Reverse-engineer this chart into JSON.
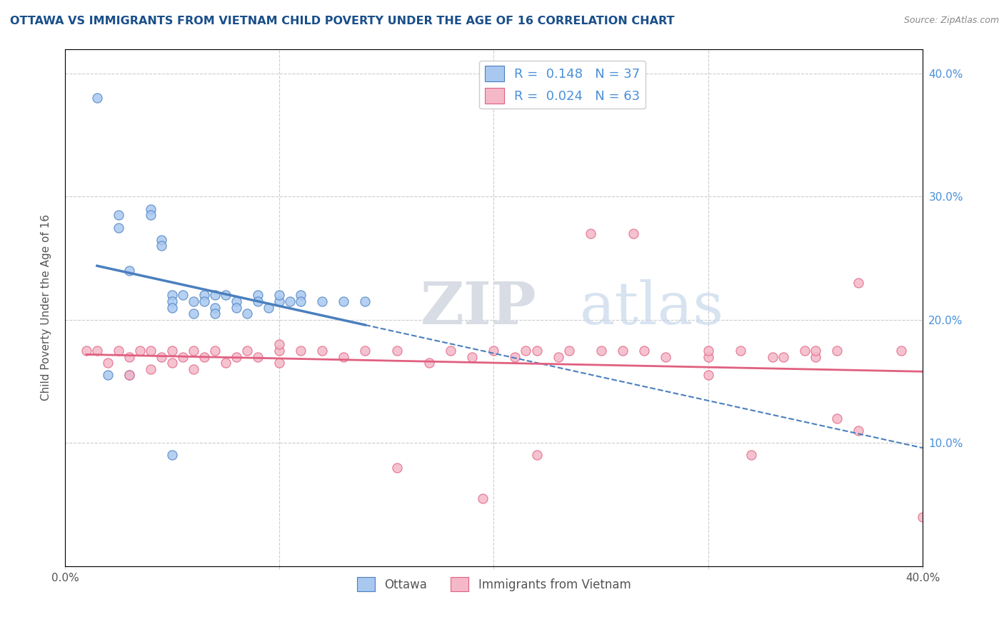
{
  "title": "OTTAWA VS IMMIGRANTS FROM VIETNAM CHILD POVERTY UNDER THE AGE OF 16 CORRELATION CHART",
  "source": "Source: ZipAtlas.com",
  "ylabel": "Child Poverty Under the Age of 16",
  "xlim": [
    0.0,
    0.4
  ],
  "ylim": [
    0.0,
    0.42
  ],
  "ottawa_color": "#a8c8f0",
  "vietnam_color": "#f4b8c8",
  "ottawa_line_color": "#4a7fbe",
  "vietnam_line_color": "#e06080",
  "R_ottawa": 0.148,
  "N_ottawa": 37,
  "R_vietnam": 0.024,
  "N_vietnam": 63,
  "legend_ottawa": "Ottawa",
  "legend_vietnam": "Immigrants from Vietnam",
  "watermark_ZIP": "ZIP",
  "watermark_atlas": "atlas",
  "ottawa_x": [
    0.015,
    0.025,
    0.025,
    0.03,
    0.04,
    0.04,
    0.045,
    0.045,
    0.05,
    0.05,
    0.05,
    0.055,
    0.06,
    0.06,
    0.065,
    0.065,
    0.07,
    0.07,
    0.07,
    0.075,
    0.08,
    0.08,
    0.085,
    0.09,
    0.09,
    0.095,
    0.1,
    0.1,
    0.105,
    0.11,
    0.11,
    0.12,
    0.13,
    0.14,
    0.02,
    0.03,
    0.05
  ],
  "ottawa_y": [
    0.38,
    0.285,
    0.275,
    0.24,
    0.29,
    0.285,
    0.265,
    0.26,
    0.22,
    0.215,
    0.21,
    0.22,
    0.215,
    0.205,
    0.22,
    0.215,
    0.22,
    0.21,
    0.205,
    0.22,
    0.215,
    0.21,
    0.205,
    0.22,
    0.215,
    0.21,
    0.215,
    0.22,
    0.215,
    0.22,
    0.215,
    0.215,
    0.215,
    0.215,
    0.155,
    0.155,
    0.09
  ],
  "vietnam_x": [
    0.01,
    0.015,
    0.02,
    0.025,
    0.03,
    0.03,
    0.035,
    0.04,
    0.04,
    0.045,
    0.05,
    0.05,
    0.055,
    0.06,
    0.06,
    0.065,
    0.07,
    0.075,
    0.08,
    0.085,
    0.09,
    0.1,
    0.1,
    0.11,
    0.12,
    0.13,
    0.14,
    0.155,
    0.17,
    0.18,
    0.19,
    0.2,
    0.21,
    0.215,
    0.22,
    0.23,
    0.235,
    0.25,
    0.27,
    0.28,
    0.3,
    0.3,
    0.315,
    0.33,
    0.335,
    0.345,
    0.35,
    0.36,
    0.37,
    0.39,
    0.22,
    0.245,
    0.265,
    0.32,
    0.35,
    0.36,
    0.37,
    0.26,
    0.3,
    0.1,
    0.155,
    0.195,
    0.4
  ],
  "vietnam_y": [
    0.175,
    0.175,
    0.165,
    0.175,
    0.17,
    0.155,
    0.175,
    0.175,
    0.16,
    0.17,
    0.165,
    0.175,
    0.17,
    0.175,
    0.16,
    0.17,
    0.175,
    0.165,
    0.17,
    0.175,
    0.17,
    0.175,
    0.165,
    0.175,
    0.175,
    0.17,
    0.175,
    0.175,
    0.165,
    0.175,
    0.17,
    0.175,
    0.17,
    0.175,
    0.175,
    0.17,
    0.175,
    0.175,
    0.175,
    0.17,
    0.155,
    0.17,
    0.175,
    0.17,
    0.17,
    0.175,
    0.17,
    0.175,
    0.23,
    0.175,
    0.09,
    0.27,
    0.27,
    0.09,
    0.175,
    0.12,
    0.11,
    0.175,
    0.175,
    0.18,
    0.08,
    0.055,
    0.04
  ]
}
